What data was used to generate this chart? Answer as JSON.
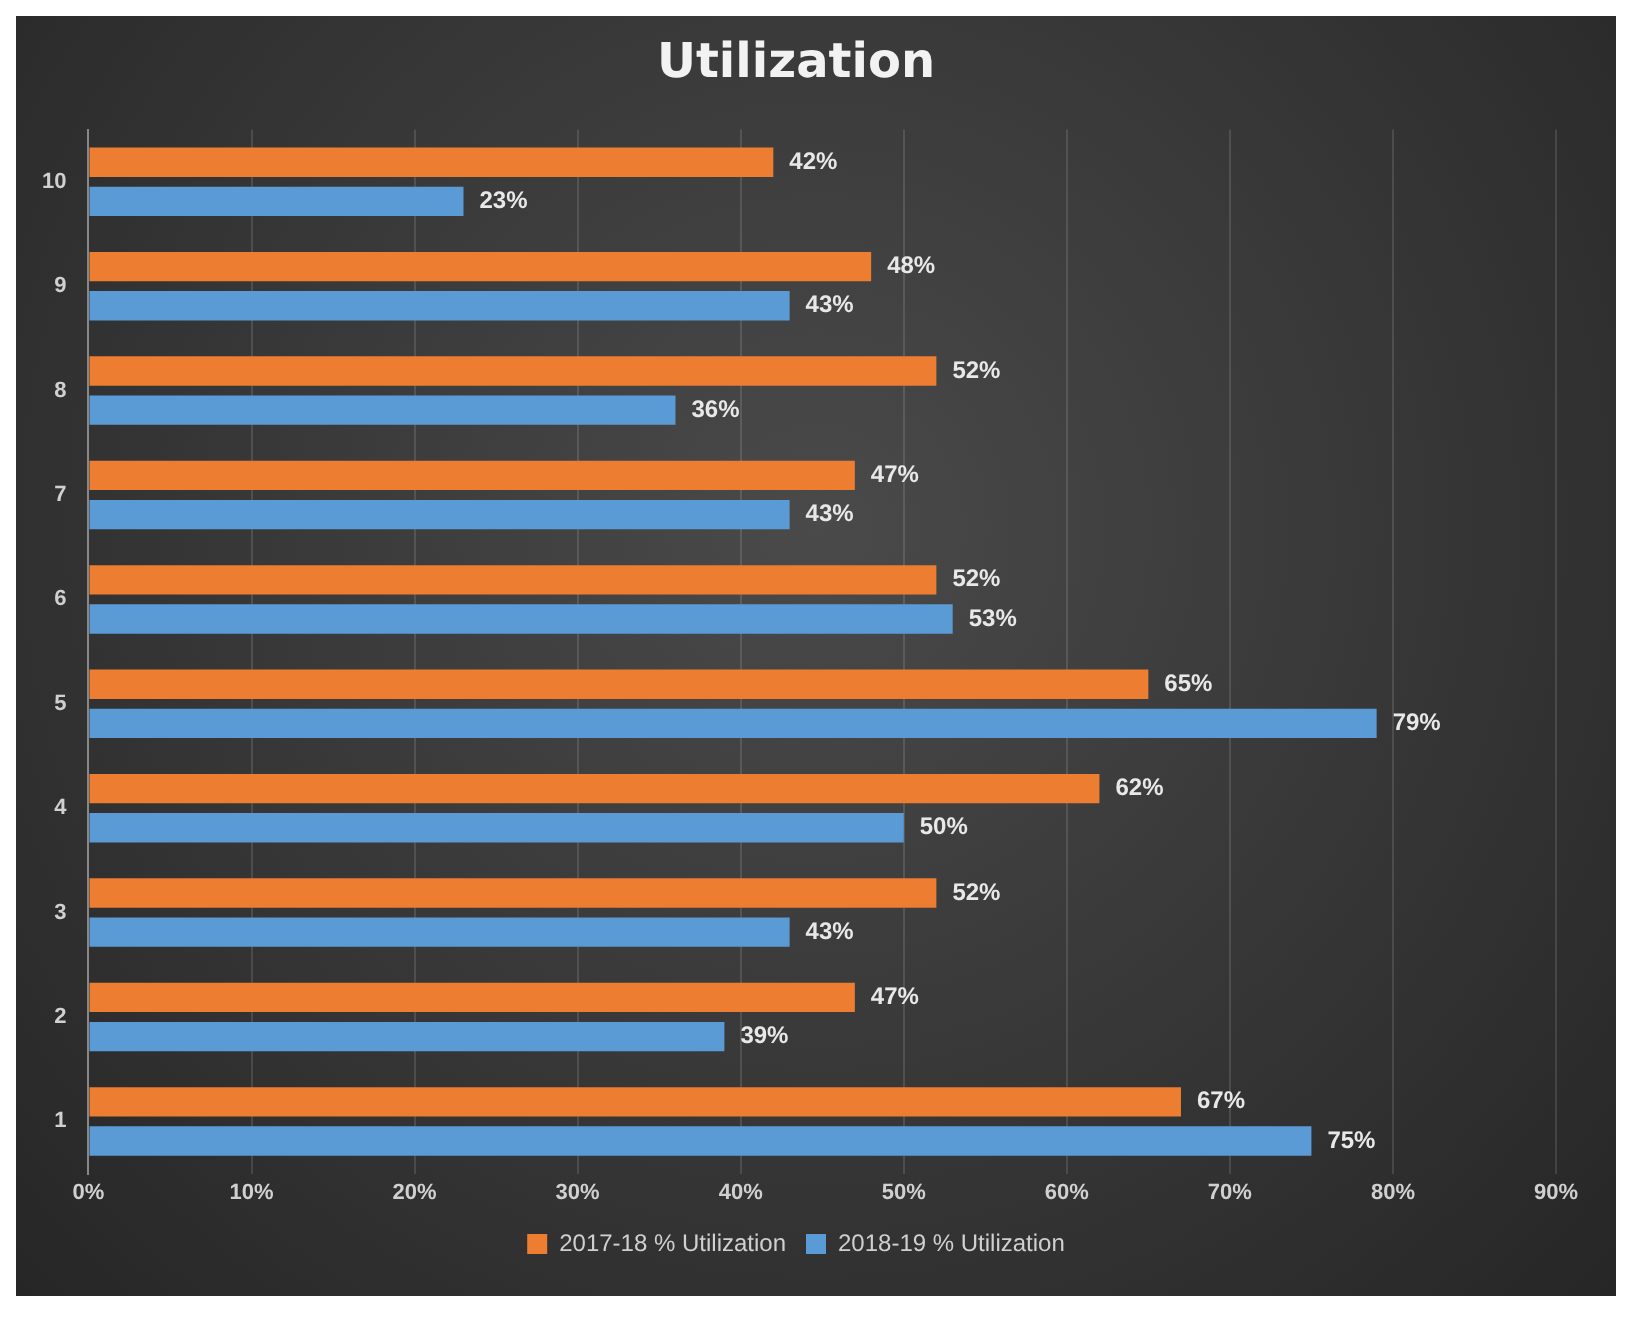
{
  "chart_data": {
    "type": "bar",
    "orientation": "horizontal",
    "title": "Utilization",
    "categories": [
      "10",
      "9",
      "8",
      "7",
      "6",
      "5",
      "4",
      "3",
      "2",
      "1"
    ],
    "series": [
      {
        "name": "2017-18 % Utilization",
        "color": "#ed7d31",
        "values": [
          42,
          48,
          52,
          47,
          52,
          65,
          62,
          52,
          47,
          67
        ],
        "value_labels": [
          "42%",
          "48%",
          "52%",
          "47%",
          "52%",
          "65%",
          "62%",
          "52%",
          "47%",
          "67%"
        ]
      },
      {
        "name": "2018-19 % Utilization",
        "color": "#5b9bd5",
        "values": [
          23,
          43,
          36,
          43,
          53,
          79,
          50,
          43,
          39,
          75
        ],
        "value_labels": [
          "23%",
          "43%",
          "36%",
          "43%",
          "53%",
          "79%",
          "50%",
          "43%",
          "39%",
          "75%"
        ]
      }
    ],
    "xlim": [
      0,
      90
    ],
    "xticks": [
      {
        "value": 0,
        "label": "0%"
      },
      {
        "value": 10,
        "label": "10%"
      },
      {
        "value": 20,
        "label": "20%"
      },
      {
        "value": 30,
        "label": "30%"
      },
      {
        "value": 40,
        "label": "40%"
      },
      {
        "value": 50,
        "label": "50%"
      },
      {
        "value": 60,
        "label": "60%"
      },
      {
        "value": 70,
        "label": "70%"
      },
      {
        "value": 80,
        "label": "80%"
      },
      {
        "value": 90,
        "label": "90%"
      }
    ],
    "grid": "x",
    "legend": "bottom"
  }
}
